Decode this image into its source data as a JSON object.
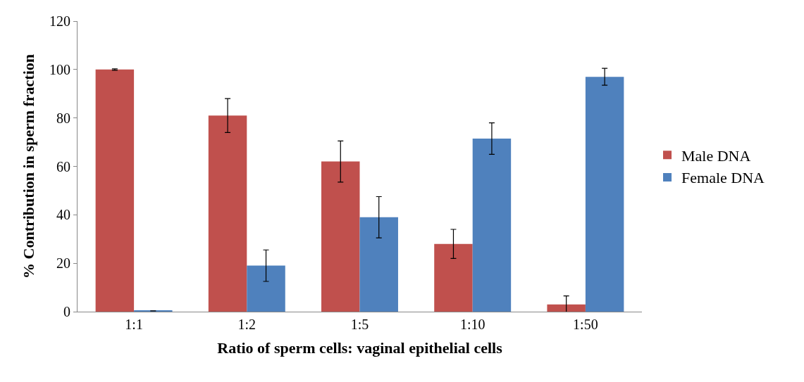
{
  "chart_data": {
    "type": "bar",
    "xlabel": "Ratio of sperm cells: vaginal epithelial cells",
    "ylabel": "% Contribution in sperm fraction",
    "categories": [
      "1:1",
      "1:2",
      "1:5",
      "1:10",
      "1:50"
    ],
    "series": [
      {
        "name": "Male DNA",
        "color": "#c0504d",
        "values": [
          100,
          81,
          62,
          28,
          3
        ],
        "errors": [
          0.3,
          7,
          8.5,
          6,
          3.5
        ]
      },
      {
        "name": "Female DNA",
        "color": "#4f81bd",
        "values": [
          0.3,
          19,
          39,
          71.5,
          97
        ],
        "errors": [
          null,
          6.5,
          8.5,
          6.5,
          3.5
        ]
      }
    ],
    "ylim": [
      0,
      120
    ],
    "yticks": [
      0,
      20,
      40,
      60,
      80,
      100,
      120
    ],
    "legend": "right"
  }
}
